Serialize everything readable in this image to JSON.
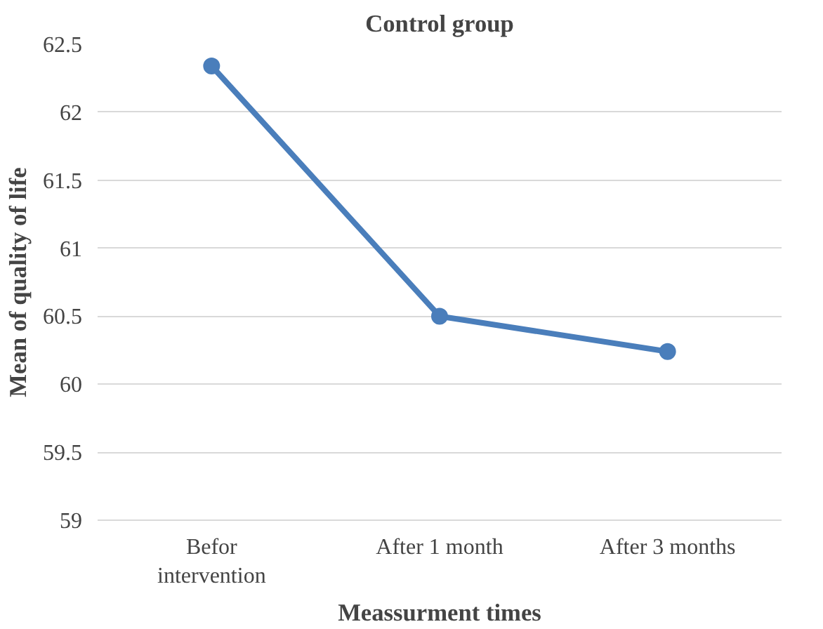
{
  "chart_data": {
    "type": "line",
    "title": "Control group",
    "xlabel": "Meassurment times",
    "ylabel": "Mean of quality of life",
    "categories": [
      "Befor\nintervention",
      "After 1 month",
      "After 3 months"
    ],
    "series": [
      {
        "color": "#4a7ebb",
        "values": [
          62.34,
          60.5,
          60.24
        ]
      }
    ],
    "ylim": [
      59,
      62.5
    ],
    "yticks": [
      59,
      59.5,
      60,
      60.5,
      61,
      61.5,
      62,
      62.5
    ],
    "grid": "y",
    "marker": "circle",
    "line_style": "solid"
  }
}
